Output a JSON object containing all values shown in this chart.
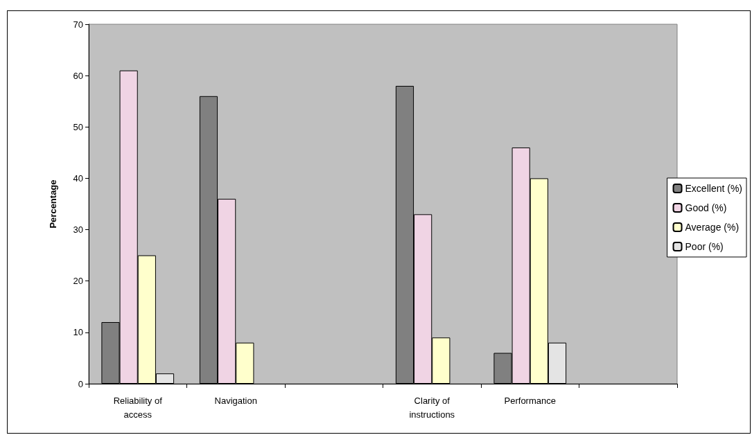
{
  "chart_data": {
    "type": "bar",
    "ylabel": "Percentage",
    "categories": [
      "Reliability of\naccess",
      "Navigation",
      null,
      "Clarity of\ninstructions",
      "Performance",
      null
    ],
    "series": [
      {
        "name": "Excellent (%)",
        "color": "#808080",
        "values": [
          12,
          56,
          null,
          58,
          6,
          null
        ]
      },
      {
        "name": "Good (%)",
        "color": "#f0d4e4",
        "values": [
          61,
          36,
          null,
          33,
          46,
          null
        ]
      },
      {
        "name": "Average (%)",
        "color": "#ffffcc",
        "values": [
          25,
          8,
          null,
          9,
          40,
          null
        ]
      },
      {
        "name": "Poor (%)",
        "color": "#e4e4e4",
        "values": [
          2,
          null,
          null,
          null,
          8,
          null
        ]
      }
    ],
    "ylim": [
      0,
      70
    ],
    "yticks": [
      0,
      10,
      20,
      30,
      40,
      50,
      60,
      70
    ],
    "grid": false,
    "legend": "right"
  }
}
